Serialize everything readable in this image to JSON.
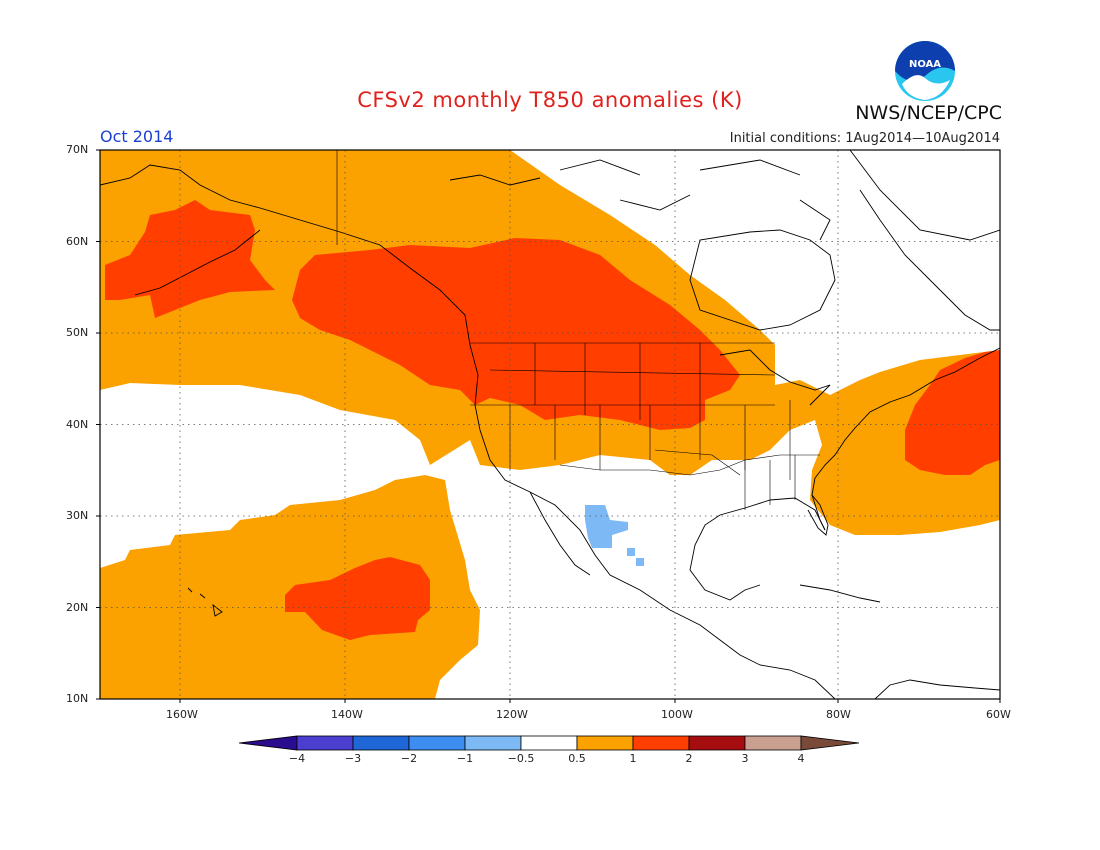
{
  "title": "CFSv2 monthly T850 anomalies (K)",
  "month_label": "Oct 2014",
  "initial_conditions": "Initial conditions: 1Aug2014—10Aug2014",
  "agency": "NWS/NCEP/CPC",
  "logo_text": "NOAA",
  "latitude_labels": [
    "70N",
    "60N",
    "50N",
    "40N",
    "30N",
    "20N",
    "10N"
  ],
  "longitude_labels": [
    "160W",
    "140W",
    "120W",
    "100W",
    "80W",
    "60W"
  ],
  "colorbar": {
    "labels": [
      "−4",
      "−3",
      "−2",
      "−1",
      "−0.5",
      "0.5",
      "1",
      "2",
      "3",
      "4"
    ],
    "colors": [
      "#2a0d8e",
      "#4c3fd0",
      "#1f66d6",
      "#3d8ef0",
      "#7db9f5",
      "#ffffff",
      "#fba100",
      "#ff3e00",
      "#a50d10",
      "#c9a08f",
      "#7a4a38"
    ]
  },
  "anomaly_colors": {
    "orange": "#fba100",
    "red": "#ff3e00",
    "light_blue": "#7db9f5"
  }
}
